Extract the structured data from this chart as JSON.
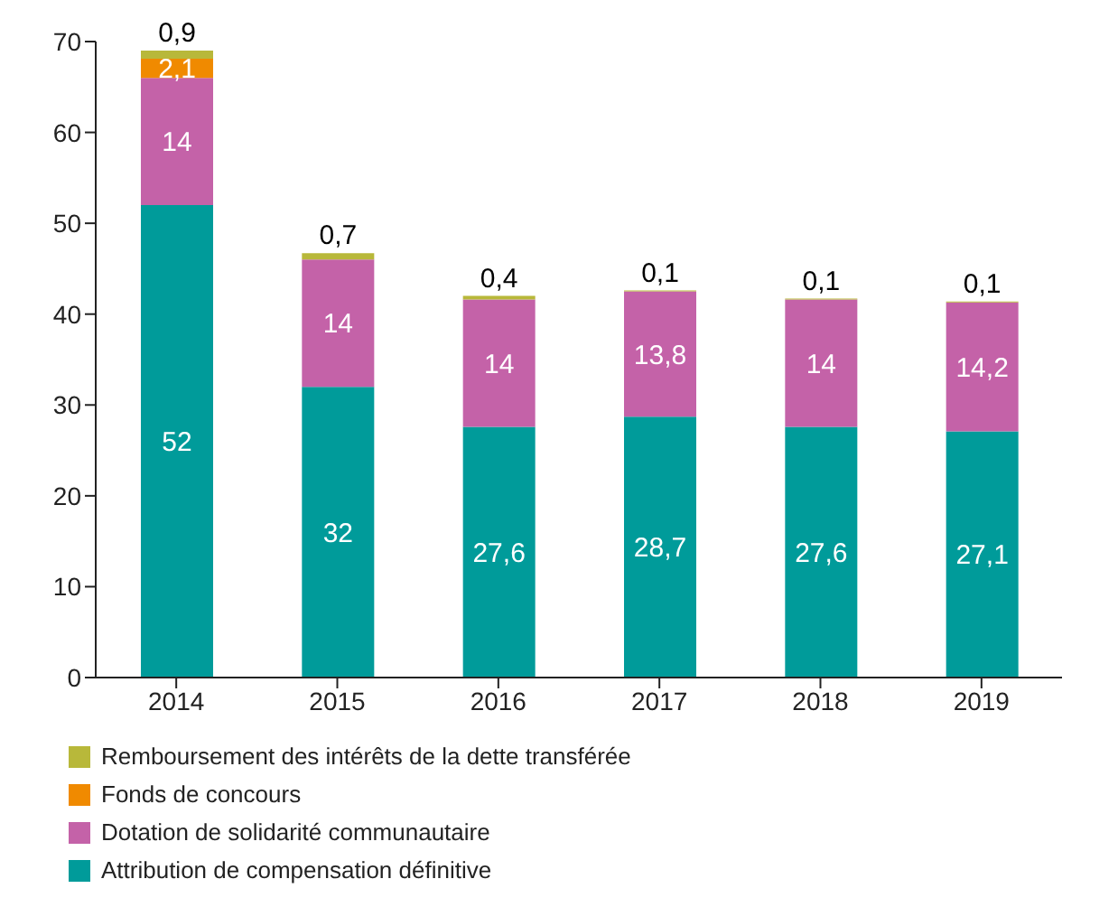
{
  "chart_data": {
    "type": "bar",
    "stacked": true,
    "categories": [
      "2014",
      "2015",
      "2016",
      "2017",
      "2018",
      "2019"
    ],
    "ylim": [
      0,
      70
    ],
    "yticks": [
      0,
      10,
      20,
      30,
      40,
      50,
      60,
      70
    ],
    "grid": false,
    "legend": "bottom",
    "series": [
      {
        "name": "Attribution de compensation définitive",
        "color": "#009b9a",
        "values": [
          52,
          32,
          27.6,
          28.7,
          27.6,
          27.1
        ],
        "value_labels": [
          "52",
          "32",
          "27,6",
          "28,7",
          "27,6",
          "27,1"
        ]
      },
      {
        "name": "Dotation de solidarité communautaire",
        "color": "#c462a8",
        "values": [
          14,
          14,
          14,
          13.8,
          14,
          14.2
        ],
        "value_labels": [
          "14",
          "14",
          "14",
          "13,8",
          "14",
          "14,2"
        ]
      },
      {
        "name": "Fonds de concours",
        "color": "#f08a00",
        "values": [
          2.1,
          null,
          null,
          null,
          null,
          null
        ],
        "value_labels": [
          "2,1",
          null,
          null,
          null,
          null,
          null
        ]
      },
      {
        "name": "Remboursement des intérêts de la dette transférée",
        "color": "#b8b83a",
        "values": [
          0.9,
          0.7,
          0.4,
          0.1,
          0.1,
          0.1
        ],
        "value_labels": [
          "0,9",
          "0,7",
          "0,4",
          "0,1",
          "0,1",
          "0,1"
        ]
      }
    ]
  }
}
